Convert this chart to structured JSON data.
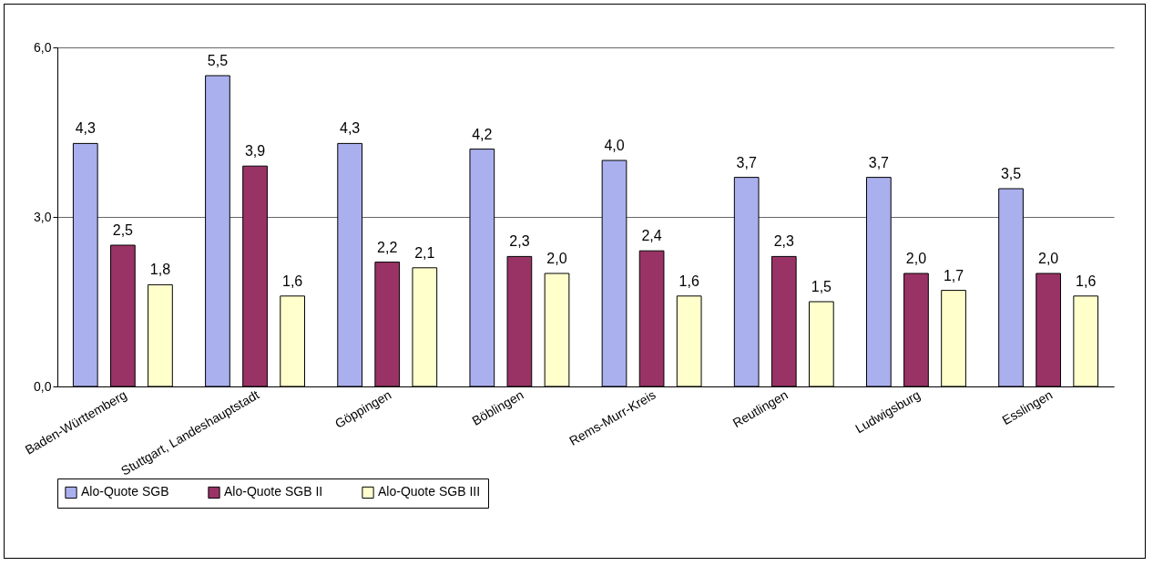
{
  "chart_data": {
    "type": "bar",
    "categories": [
      "Baden-Württemberg",
      "Stuttgart, Landeshauptstadt",
      "Göppingen",
      "Böblingen",
      "Rems-Murr-Kreis",
      "Reutlingen",
      "Ludwigsburg",
      "Esslingen"
    ],
    "series": [
      {
        "name": "Alo-Quote SGB",
        "color": "#aab0ee",
        "values": [
          4.3,
          5.5,
          4.3,
          4.2,
          4.0,
          3.7,
          3.7,
          3.5
        ],
        "value_labels": [
          "4,3",
          "5,5",
          "4,3",
          "4,2",
          "4,0",
          "3,7",
          "3,7",
          "3,5"
        ]
      },
      {
        "name": "Alo-Quote SGB II",
        "color": "#993366",
        "values": [
          2.5,
          3.9,
          2.2,
          2.3,
          2.4,
          2.3,
          2.0,
          2.0
        ],
        "value_labels": [
          "2,5",
          "3,9",
          "2,2",
          "2,3",
          "2,4",
          "2,3",
          "2,0",
          "2,0"
        ]
      },
      {
        "name": "Alo-Quote SGB III",
        "color": "#ffffcc",
        "values": [
          1.8,
          1.6,
          2.1,
          2.0,
          1.6,
          1.5,
          1.7,
          1.6
        ],
        "value_labels": [
          "1,8",
          "1,6",
          "2,1",
          "2,0",
          "1,6",
          "1,5",
          "1,7",
          "1,6"
        ]
      }
    ],
    "ylim": [
      0,
      6
    ],
    "yticks": [
      {
        "value": 0,
        "label": "0,0"
      },
      {
        "value": 3,
        "label": "3,0"
      },
      {
        "value": 6,
        "label": "6,0"
      }
    ],
    "grid": "y",
    "legend": "bottom"
  }
}
